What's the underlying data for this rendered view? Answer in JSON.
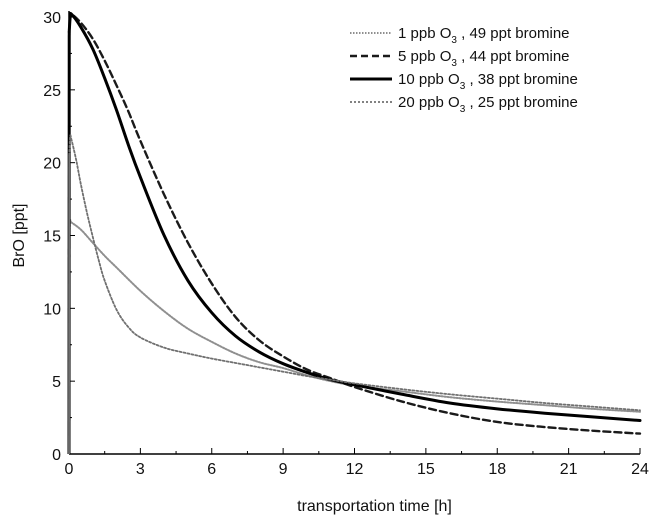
{
  "chart_data": {
    "type": "line",
    "xlabel": "transportation time [h]",
    "ylabel": "BrO [ppt]",
    "xlim": [
      0,
      24
    ],
    "ylim": [
      0,
      30
    ],
    "xticks": [
      0,
      3,
      6,
      9,
      12,
      15,
      18,
      21,
      24
    ],
    "yticks": [
      0,
      5,
      10,
      15,
      20,
      25,
      30
    ],
    "grid": false,
    "legend_position": "top-right",
    "series": [
      {
        "name": "1 ppb O3 , 49 ppt bromine",
        "legend_parts": [
          "1 ppb O",
          "3",
          " , 49 ppt bromine"
        ],
        "style": "light-gray-thin",
        "color": "#8a8a8a",
        "x": [
          0,
          0.01,
          0.05,
          0.1,
          0.5,
          1,
          1.5,
          2,
          3,
          4,
          5,
          6,
          7,
          8,
          9,
          10,
          11,
          12,
          14,
          16,
          18,
          20,
          22,
          24
        ],
        "y": [
          0,
          15,
          16,
          15.9,
          15.4,
          14.5,
          13.6,
          12.8,
          11.2,
          9.8,
          8.6,
          7.7,
          6.9,
          6.3,
          5.9,
          5.4,
          5.0,
          4.7,
          4.3,
          3.9,
          3.6,
          3.35,
          3.1,
          2.9
        ]
      },
      {
        "name": "5 ppb O3 , 44 ppt bromine",
        "legend_parts": [
          "5 ppb O",
          "3",
          " , 44 ppt bromine"
        ],
        "style": "dashed",
        "color": "#222222",
        "x": [
          0,
          0.01,
          0.05,
          0.1,
          0.5,
          1,
          1.5,
          2,
          2.5,
          3,
          4,
          5,
          6,
          7,
          8,
          9,
          10,
          11,
          12,
          14,
          16,
          18,
          20,
          22,
          24
        ],
        "y": [
          0,
          29,
          30,
          30.2,
          29.6,
          28.5,
          27.0,
          25.3,
          23.5,
          21.5,
          17.8,
          14.5,
          11.7,
          9.4,
          7.8,
          6.7,
          5.8,
          5.2,
          4.6,
          3.6,
          2.8,
          2.2,
          1.85,
          1.6,
          1.4
        ]
      },
      {
        "name": "10 ppb O3 , 38 ppt bromine",
        "legend_parts": [
          "10 ppb O",
          "3",
          " , 38 ppt bromine"
        ],
        "style": "solid-thick",
        "color": "#000000",
        "x": [
          0,
          0.01,
          0.05,
          0.1,
          0.5,
          1,
          1.5,
          2,
          2.5,
          3,
          4,
          5,
          6,
          7,
          8,
          9,
          10,
          11,
          12,
          14,
          16,
          18,
          20,
          22,
          24
        ],
        "y": [
          0,
          29,
          30,
          30.2,
          29.3,
          27.8,
          25.8,
          23.6,
          21.2,
          19.0,
          15.0,
          11.9,
          9.7,
          8.1,
          7.0,
          6.2,
          5.6,
          5.1,
          4.75,
          4.1,
          3.5,
          3.1,
          2.8,
          2.55,
          2.3
        ]
      },
      {
        "name": "20 ppb O3 , 25 ppt bromine",
        "legend_parts": [
          "20 ppb O",
          "3",
          " , 25 ppt bromine"
        ],
        "style": "dotted-cross",
        "color": "#6a6a6a",
        "x": [
          0,
          0.01,
          0.05,
          0.1,
          0.3,
          0.5,
          0.75,
          1,
          1.25,
          1.5,
          2,
          2.5,
          3,
          4,
          5,
          6,
          7,
          8,
          9,
          10,
          11,
          12,
          14,
          16,
          18,
          20,
          22,
          24
        ],
        "y": [
          0,
          20.5,
          21.8,
          21.6,
          20.2,
          18.5,
          16.6,
          14.9,
          13.3,
          11.9,
          9.9,
          8.7,
          8.0,
          7.3,
          6.9,
          6.55,
          6.25,
          5.95,
          5.65,
          5.35,
          5.1,
          4.85,
          4.45,
          4.1,
          3.8,
          3.5,
          3.25,
          3.0
        ]
      }
    ]
  }
}
